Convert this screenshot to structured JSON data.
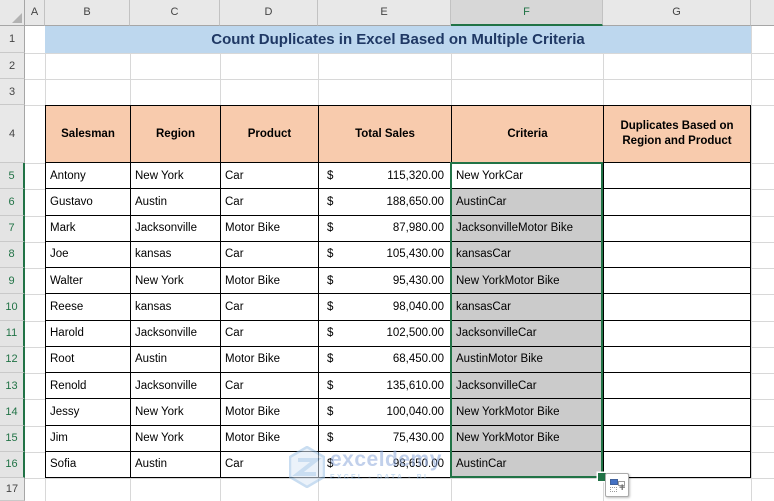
{
  "sheet": {
    "title_banner": "Count Duplicates in Excel Based on Multiple Criteria",
    "column_letters": [
      "A",
      "B",
      "C",
      "D",
      "E",
      "F",
      "G"
    ],
    "row_numbers": [
      "1",
      "2",
      "3",
      "4",
      "5",
      "6",
      "7",
      "8",
      "9",
      "10",
      "11",
      "12",
      "13",
      "14",
      "15",
      "16",
      "17"
    ],
    "selection": {
      "column": "F",
      "row_start": 5,
      "row_end": 16,
      "range": "F5:F16"
    }
  },
  "table": {
    "headers": {
      "salesman": "Salesman",
      "region": "Region",
      "product": "Product",
      "total_sales": "Total Sales",
      "criteria": "Criteria",
      "duplicates": "Duplicates Based on Region and Product"
    },
    "currency_symbol": "$",
    "rows": [
      {
        "salesman": "Antony",
        "region": "New York",
        "product": "Car",
        "total_sales": "115,320.00",
        "criteria": "New YorkCar",
        "duplicates": ""
      },
      {
        "salesman": "Gustavo",
        "region": "Austin",
        "product": "Car",
        "total_sales": "188,650.00",
        "criteria": "AustinCar",
        "duplicates": ""
      },
      {
        "salesman": "Mark",
        "region": "Jacksonville",
        "product": "Motor Bike",
        "total_sales": "87,980.00",
        "criteria": "JacksonvilleMotor Bike",
        "duplicates": ""
      },
      {
        "salesman": "Joe",
        "region": "kansas",
        "product": "Car",
        "total_sales": "105,430.00",
        "criteria": "kansasCar",
        "duplicates": ""
      },
      {
        "salesman": "Walter",
        "region": "New York",
        "product": "Motor Bike",
        "total_sales": "95,430.00",
        "criteria": "New YorkMotor Bike",
        "duplicates": ""
      },
      {
        "salesman": "Reese",
        "region": "kansas",
        "product": "Car",
        "total_sales": "98,040.00",
        "criteria": "kansasCar",
        "duplicates": ""
      },
      {
        "salesman": "Harold",
        "region": "Jacksonville",
        "product": "Car",
        "total_sales": "102,500.00",
        "criteria": "JacksonvilleCar",
        "duplicates": ""
      },
      {
        "salesman": "Root",
        "region": "Austin",
        "product": "Motor Bike",
        "total_sales": "68,450.00",
        "criteria": "AustinMotor Bike",
        "duplicates": ""
      },
      {
        "salesman": "Renold",
        "region": "Jacksonville",
        "product": "Car",
        "total_sales": "135,610.00",
        "criteria": "JacksonvilleCar",
        "duplicates": ""
      },
      {
        "salesman": "Jessy",
        "region": "New York",
        "product": "Motor Bike",
        "total_sales": "100,040.00",
        "criteria": "New YorkMotor Bike",
        "duplicates": ""
      },
      {
        "salesman": "Jim",
        "region": "New York",
        "product": "Motor Bike",
        "total_sales": "75,430.00",
        "criteria": "New YorkMotor Bike",
        "duplicates": ""
      },
      {
        "salesman": "Sofia",
        "region": "Austin",
        "product": "Car",
        "total_sales": "98,650.00",
        "criteria": "AustinCar",
        "duplicates": ""
      }
    ]
  },
  "watermark": {
    "brand": "exceldemy",
    "tagline": "EXCEL - DATA - BI"
  },
  "colors": {
    "title_bg": "#BDD7EE",
    "title_text": "#1F3864",
    "table_header_fill": "#F8CBAD",
    "selection_border_green": "#217346",
    "selection_fill_gray": "#CBCBCB",
    "watermark_blue": "#8FAADC",
    "autofill_icon_blue": "#4472C4"
  }
}
